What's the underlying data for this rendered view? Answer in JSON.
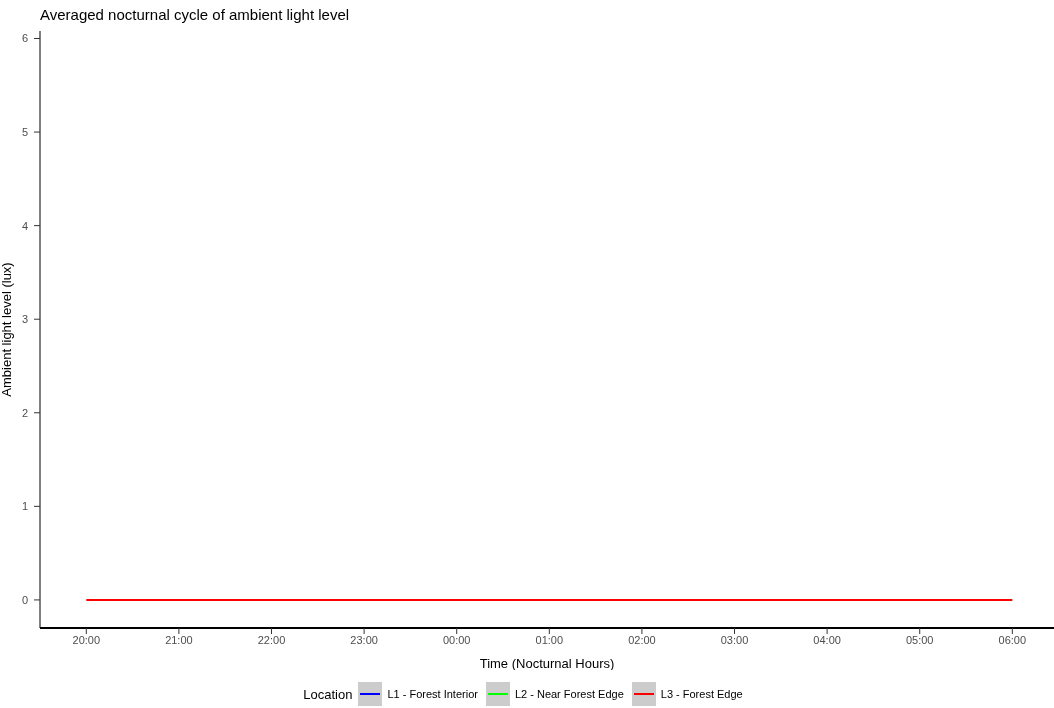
{
  "chart_data": {
    "type": "line",
    "title": "Averaged nocturnal cycle of ambient light level",
    "xlabel": "Time (Nocturnal Hours)",
    "ylabel": "Ambient light level (lux)",
    "legend_title": "Location",
    "x": [
      "--01-01T20:00",
      "--01-01T21:00",
      "--01-01T22:00",
      "--01-01T23:00",
      "--01-02T00:00",
      "--01-02T01:00",
      "--01-02T02:00",
      "--01-02T03:00",
      "--01-02T04:00",
      "--01-02T05:00",
      "--01-02T06:00"
    ],
    "series": [
      {
        "name": "L1 - Forest Interior",
        "color": "#0000ff",
        "values": [
          null,
          null,
          null,
          null,
          null,
          null,
          null,
          null,
          null,
          null,
          null
        ]
      },
      {
        "name": "L2 - Near Forest Edge",
        "color": "#00ff00",
        "values": [
          null,
          null,
          null,
          null,
          null,
          null,
          null,
          null,
          null,
          null,
          null
        ]
      },
      {
        "name": "L3 - Forest Edge",
        "color": "#ff0000",
        "values": [
          0,
          0,
          0,
          0,
          0,
          0,
          0,
          0,
          0,
          0,
          0
        ]
      }
    ],
    "xlim": [
      "--01-01T19:30",
      "--01-02T06:27"
    ],
    "ylim": [
      -0.3,
      6.08
    ],
    "xticks": [
      {
        "value": "--01-01T20:00",
        "label": "20:00"
      },
      {
        "value": "--01-01T21:00",
        "label": "21:00"
      },
      {
        "value": "--01-01T22:00",
        "label": "22:00"
      },
      {
        "value": "--01-01T23:00",
        "label": "23:00"
      },
      {
        "value": "--01-02T00:00",
        "label": "00:00"
      },
      {
        "value": "--01-02T01:00",
        "label": "01:00"
      },
      {
        "value": "--01-02T02:00",
        "label": "02:00"
      },
      {
        "value": "--01-02T03:00",
        "label": "03:00"
      },
      {
        "value": "--01-02T04:00",
        "label": "04:00"
      },
      {
        "value": "--01-02T05:00",
        "label": "05:00"
      },
      {
        "value": "--01-02T06:00",
        "label": "06:00"
      }
    ],
    "yticks": [
      0,
      1,
      2,
      3,
      4,
      5,
      6
    ],
    "grid": false,
    "legend": "bottom",
    "marker": "none",
    "line_style": "solid"
  }
}
